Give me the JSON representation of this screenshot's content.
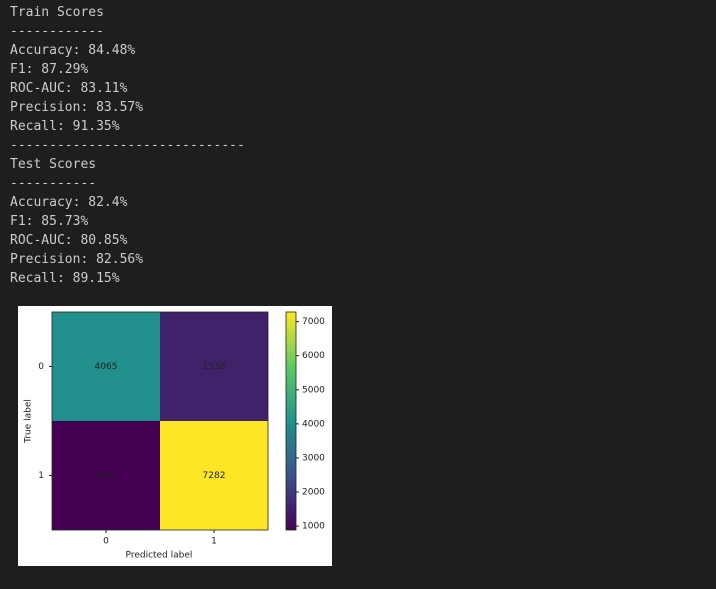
{
  "output": {
    "lines": [
      "Train Scores",
      "------------",
      "Accuracy: 84.48%",
      "F1: 87.29%",
      "ROC-AUC: 83.11%",
      "Precision: 83.57%",
      "Recall: 91.35%",
      "------------------------------",
      "Test Scores",
      "-----------",
      "Accuracy: 82.4%",
      "F1: 85.73%",
      "ROC-AUC: 80.85%",
      "Precision: 82.56%",
      "Recall: 89.15%"
    ]
  },
  "chart_data": {
    "type": "heatmap",
    "xlabel": "Predicted label",
    "ylabel": "True label",
    "x": [
      "0",
      "1"
    ],
    "y": [
      "0",
      "1"
    ],
    "values": [
      [
        4065,
        1538
      ],
      [
        886,
        7282
      ]
    ],
    "colormap": "viridis",
    "clim": [
      886,
      7282
    ],
    "cticks": [
      1000,
      2000,
      3000,
      4000,
      5000,
      6000,
      7000
    ]
  }
}
